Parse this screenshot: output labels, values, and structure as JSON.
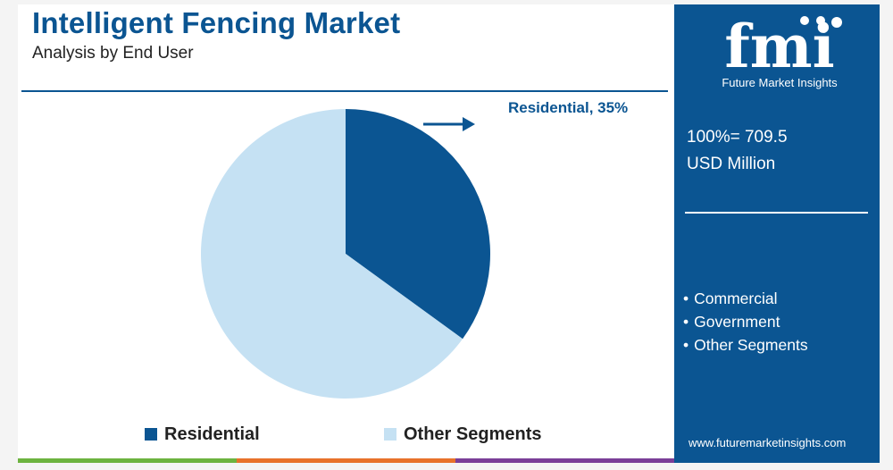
{
  "header": {
    "title": "Intelligent Fencing Market",
    "subtitle": "Analysis by End User"
  },
  "chart_data": {
    "type": "pie",
    "categories": [
      "Residential",
      "Other Segments"
    ],
    "values": [
      35,
      65
    ],
    "unit": "%",
    "colors": [
      "#0b5592",
      "#c5e1f3"
    ],
    "annotation": "Residential, 35%",
    "legend": [
      "Residential",
      "Other Segments"
    ],
    "legend_position": "bottom"
  },
  "side_panel": {
    "logo_text": "fmi",
    "logo_caption": "Future Market Insights",
    "total_line1": "100%= 709.5",
    "total_line2": "USD Million",
    "other_segments": [
      "Commercial",
      "Government",
      "Other Segments"
    ],
    "website": "www.futuremarketinsights.com"
  },
  "colors": {
    "brand_blue": "#0b5592",
    "light_blue": "#c5e1f3",
    "bar_green": "#6cb33f",
    "bar_orange": "#e8722a",
    "bar_purple": "#7a3e98"
  }
}
